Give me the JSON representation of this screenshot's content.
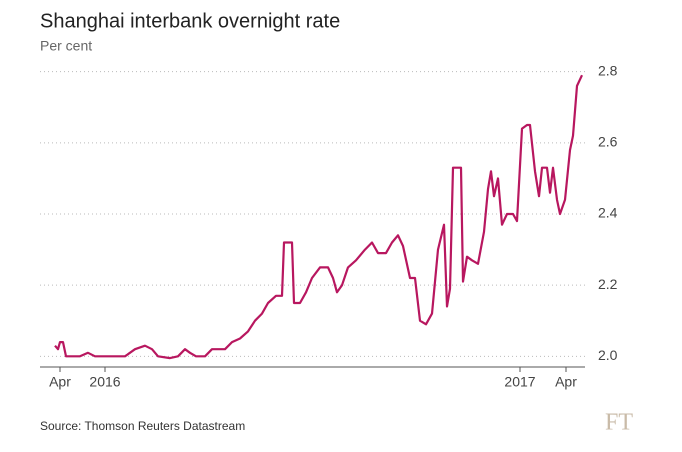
{
  "chart_data": {
    "type": "line",
    "title": "Shanghai interbank overnight rate",
    "subtitle": "Per cent",
    "source": "Source: Thomson Reuters Datastream",
    "logo": "FT",
    "x": [
      55,
      58,
      60,
      63,
      66,
      80,
      88,
      95,
      100,
      108,
      115,
      125,
      135,
      145,
      152,
      158,
      170,
      178,
      185,
      190,
      196,
      205,
      212,
      225,
      232,
      240,
      248,
      255,
      262,
      268,
      276,
      282,
      284,
      292,
      294,
      300,
      306,
      312,
      320,
      328,
      333,
      337,
      342,
      348,
      356,
      365,
      372,
      378,
      386,
      392,
      398,
      403,
      410,
      415,
      420,
      426,
      432,
      438,
      444,
      447,
      450,
      453,
      461,
      463,
      467,
      472,
      478,
      484,
      488,
      491,
      494,
      498,
      502,
      507,
      513,
      517,
      522,
      527,
      530,
      535,
      539,
      542,
      547,
      550,
      553,
      557,
      560,
      565,
      570,
      573,
      577,
      582
    ],
    "series": [
      {
        "name": "Shanghai interbank overnight rate",
        "color": "#b8175f",
        "values": [
          2.03,
          2.02,
          2.04,
          2.04,
          2.0,
          2.0,
          2.01,
          2.0,
          2.0,
          2.0,
          2.0,
          2.0,
          2.02,
          2.03,
          2.02,
          2.0,
          1.995,
          2.0,
          2.02,
          2.01,
          2.0,
          2.0,
          2.02,
          2.02,
          2.04,
          2.05,
          2.07,
          2.1,
          2.12,
          2.15,
          2.17,
          2.17,
          2.32,
          2.32,
          2.15,
          2.15,
          2.18,
          2.22,
          2.25,
          2.25,
          2.22,
          2.18,
          2.2,
          2.25,
          2.27,
          2.3,
          2.32,
          2.29,
          2.29,
          2.32,
          2.34,
          2.31,
          2.22,
          2.22,
          2.1,
          2.09,
          2.12,
          2.3,
          2.37,
          2.14,
          2.19,
          2.53,
          2.53,
          2.21,
          2.28,
          2.27,
          2.26,
          2.35,
          2.47,
          2.52,
          2.45,
          2.5,
          2.37,
          2.4,
          2.4,
          2.38,
          2.64,
          2.65,
          2.65,
          2.52,
          2.45,
          2.53,
          2.53,
          2.46,
          2.53,
          2.44,
          2.4,
          2.44,
          2.58,
          2.62,
          2.76,
          2.79
        ]
      }
    ],
    "xlim": [
      40,
      590
    ],
    "xticks": [
      {
        "value": 60,
        "label": "Apr"
      },
      {
        "value": 105,
        "label": "2016"
      },
      {
        "value": 520,
        "label": "2017"
      },
      {
        "value": 566,
        "label": "Apr"
      }
    ],
    "ylim": [
      1.97,
      2.83
    ],
    "yticks": [
      {
        "value": 2,
        "label": "2.0"
      },
      2.2,
      2.4,
      2.6,
      2.8
    ],
    "grid": true
  }
}
